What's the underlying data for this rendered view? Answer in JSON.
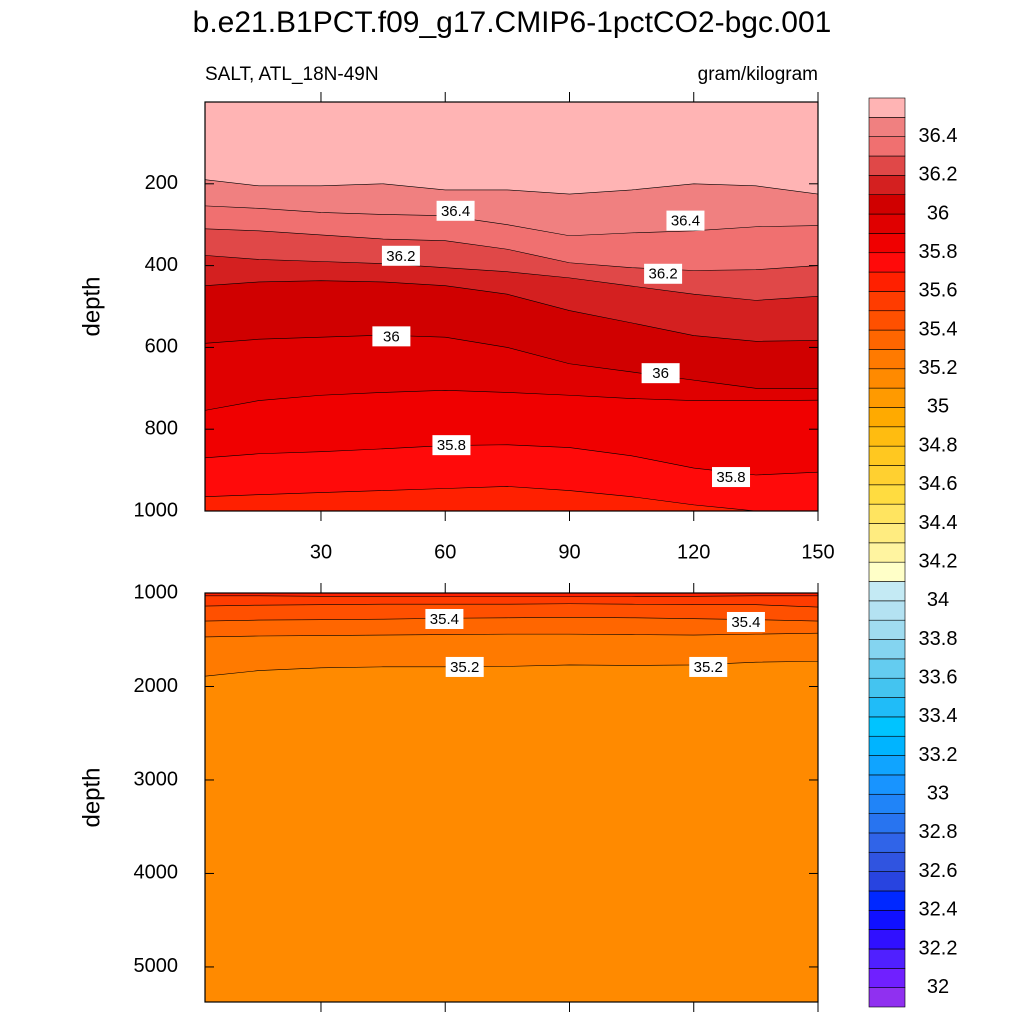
{
  "chart_data": {
    "type": "contour",
    "title": "b.e21.B1PCT.f09_g17.CMIP6-1pctCO2-bgc.001",
    "subtitle_left": "SALT, ATL_18N-49N",
    "subtitle_right": "gram/kilogram",
    "x": [
      2,
      15,
      30,
      45,
      60,
      75,
      90,
      105,
      120,
      135,
      150
    ],
    "xlim": [
      2,
      150
    ],
    "xticks": [
      30,
      60,
      90,
      120,
      150
    ],
    "panels": [
      {
        "ylabel": "depth",
        "ylim": [
          0,
          1000
        ],
        "yticks": [
          200,
          400,
          600,
          800,
          1000
        ],
        "xtick_labels": true,
        "lines": [
          {
            "level": 36.5,
            "depths": [
              190,
              205,
              205,
              200,
              215,
              215,
              225,
              215,
              200,
              205,
              225
            ]
          },
          {
            "level": 36.4,
            "depths": [
              254,
              260,
              270,
              275,
              278,
              300,
              327,
              320,
              315,
              305,
              302
            ]
          },
          {
            "level": 36.3,
            "depths": [
              310,
              315,
              325,
              335,
              339,
              360,
              393,
              405,
              412,
              410,
              400
            ]
          },
          {
            "level": 36.2,
            "depths": [
              375,
              385,
              390,
              395,
              405,
              415,
              430,
              450,
              470,
              485,
              475
            ]
          },
          {
            "level": 36.1,
            "depths": [
              449,
              440,
              437,
              440,
              449,
              470,
              510,
              540,
              571,
              585,
              583
            ]
          },
          {
            "level": 36,
            "depths": [
              590,
              580,
              575,
              570,
              575,
              600,
              640,
              660,
              680,
              700,
              700
            ]
          },
          {
            "level": 35.9,
            "depths": [
              754,
              730,
              717,
              710,
              705,
              710,
              717,
              725,
              730,
              730,
              729
            ]
          },
          {
            "level": 35.8,
            "depths": [
              870,
              860,
              855,
              848,
              840,
              838,
              845,
              865,
              895,
              912,
              905
            ]
          },
          {
            "level": 35.7,
            "depths": [
              965,
              960,
              955,
              950,
              945,
              940,
              950,
              965,
              985,
              1000,
              1010
            ]
          }
        ],
        "labels": [
          {
            "value": 36.4,
            "x": 62.5,
            "depth": 266
          },
          {
            "value": 36.4,
            "x": 118,
            "depth": 290
          },
          {
            "value": 36.2,
            "x": 49.3,
            "depth": 376
          },
          {
            "value": 36.2,
            "x": 112.6,
            "depth": 420
          },
          {
            "value": 36,
            "x": 47,
            "depth": 573
          },
          {
            "value": 36,
            "x": 112,
            "depth": 663
          },
          {
            "value": 35.8,
            "x": 61.5,
            "depth": 839
          },
          {
            "value": 35.8,
            "x": 129,
            "depth": 917
          }
        ]
      },
      {
        "ylabel": "depth",
        "ylim": [
          1000,
          5375
        ],
        "yticks": [
          1000,
          2000,
          3000,
          4000,
          5000
        ],
        "xtick_labels": false,
        "lines": [
          {
            "level": 35.6,
            "depths": [
              1030,
              1030,
              1035,
              1035,
              1040,
              1040,
              1040,
              1040,
              1035,
              1030,
              1030
            ]
          },
          {
            "level": 35.5,
            "depths": [
              1140,
              1130,
              1125,
              1120,
              1120,
              1120,
              1115,
              1120,
              1125,
              1125,
              1150
            ]
          },
          {
            "level": 35.4,
            "depths": [
              1300,
              1290,
              1285,
              1280,
              1270,
              1265,
              1260,
              1265,
              1275,
              1285,
              1300
            ]
          },
          {
            "level": 35.3,
            "depths": [
              1470,
              1460,
              1455,
              1450,
              1445,
              1440,
              1440,
              1445,
              1450,
              1440,
              1430
            ]
          },
          {
            "level": 35.2,
            "depths": [
              1890,
              1830,
              1800,
              1790,
              1790,
              1785,
              1770,
              1775,
              1770,
              1740,
              1730
            ]
          }
        ],
        "labels": [
          {
            "value": 35.4,
            "x": 59.8,
            "depth": 1278
          },
          {
            "value": 35.4,
            "x": 132.6,
            "depth": 1310
          },
          {
            "value": 35.2,
            "x": 64.7,
            "depth": 1791
          },
          {
            "value": 35.2,
            "x": 123.5,
            "depth": 1791
          }
        ]
      }
    ],
    "colorbar": {
      "levels": [
        32,
        32.1,
        32.2,
        32.3,
        32.4,
        32.5,
        32.6,
        32.7,
        32.8,
        32.9,
        33,
        33.1,
        33.2,
        33.3,
        33.4,
        33.5,
        33.6,
        33.7,
        33.8,
        33.9,
        34,
        34.1,
        34.2,
        34.3,
        34.4,
        34.5,
        34.6,
        34.7,
        34.8,
        34.9,
        35,
        35.1,
        35.2,
        35.3,
        35.4,
        35.5,
        35.6,
        35.7,
        35.8,
        35.9,
        36,
        36.1,
        36.2,
        36.3,
        36.4,
        36.5
      ],
      "colors": [
        "#9030f0",
        "#7020ff",
        "#5020ff",
        "#3010ff",
        "#1010ff",
        "#0028ff",
        "#2844e0",
        "#3054e0",
        "#3064e8",
        "#2874f0",
        "#2084f8",
        "#1894ff",
        "#10a4ff",
        "#00b4ff",
        "#00c4ff",
        "#20bcf8",
        "#44c4f0",
        "#64ccf0",
        "#84d4f0",
        "#a0dcf0",
        "#b4e2f2",
        "#c4eaf4",
        "#ffffc8",
        "#fff4a0",
        "#ffec80",
        "#ffe460",
        "#ffdc40",
        "#ffd030",
        "#ffc820",
        "#ffbc10",
        "#ffaa00",
        "#ff9a00",
        "#ff8a00",
        "#ff7a00",
        "#ff6600",
        "#ff5000",
        "#ff3c00",
        "#ff2000",
        "#ff0a0a",
        "#f00000",
        "#e00000",
        "#d00000",
        "#d42020",
        "#e04848",
        "#f07070",
        "#f08080",
        "#ffb4b4"
      ],
      "labels": [
        32,
        32.2,
        32.4,
        32.6,
        32.8,
        33,
        33.2,
        33.4,
        33.6,
        33.8,
        34,
        34.2,
        34.4,
        34.6,
        34.8,
        35,
        35.2,
        35.4,
        35.6,
        35.8,
        36,
        36.2,
        36.4
      ]
    }
  }
}
